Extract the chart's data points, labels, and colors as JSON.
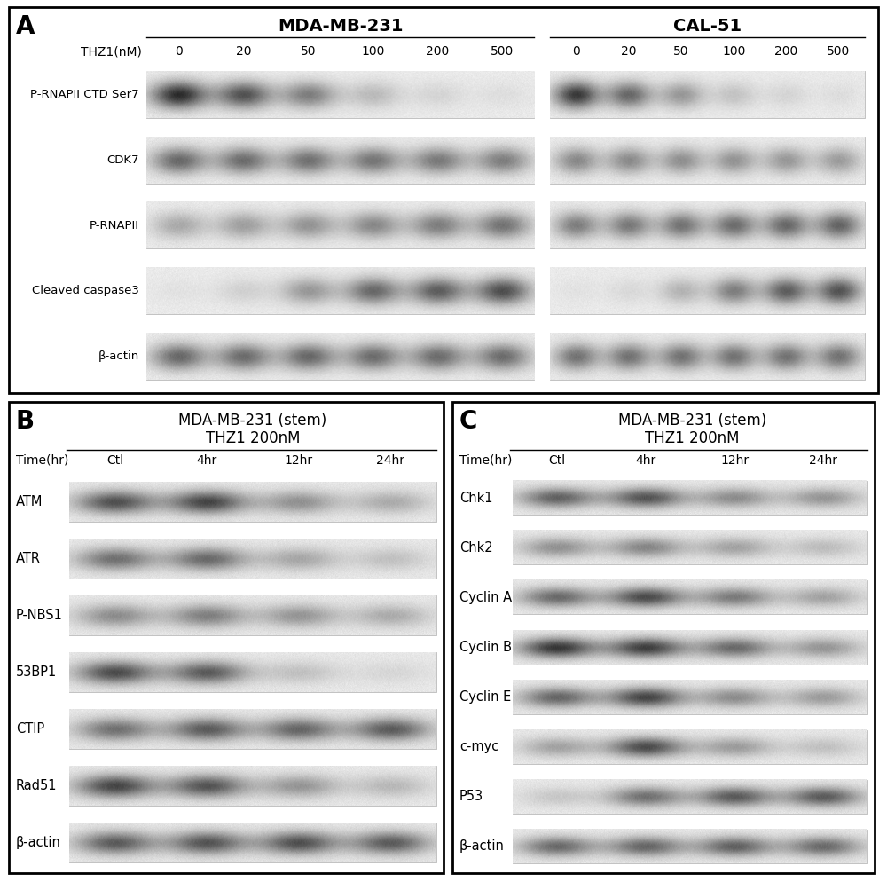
{
  "bg_color": "#ffffff",
  "panel_A": {
    "label": "A",
    "title_left": "MDA-MB-231",
    "title_right": "CAL-51",
    "row_label": "THZ1(nM)",
    "concentrations": [
      "0",
      "20",
      "50",
      "100",
      "200",
      "500"
    ],
    "proteins": [
      "P-RNAPII CTD Ser7",
      "CDK7",
      "P-RNAPII",
      "Cleaved caspase3",
      "β-actin"
    ],
    "band_data_left": {
      "P-RNAPII CTD Ser7": [
        0.88,
        0.7,
        0.5,
        0.22,
        0.1,
        0.06
      ],
      "CDK7": [
        0.6,
        0.58,
        0.56,
        0.54,
        0.52,
        0.5
      ],
      "P-RNAPII": [
        0.3,
        0.35,
        0.4,
        0.45,
        0.5,
        0.55
      ],
      "Cleaved caspase3": [
        0.04,
        0.12,
        0.38,
        0.6,
        0.65,
        0.72
      ],
      "β-actin": [
        0.6,
        0.58,
        0.6,
        0.58,
        0.58,
        0.58
      ]
    },
    "band_data_right": {
      "P-RNAPII CTD Ser7": [
        0.82,
        0.6,
        0.38,
        0.18,
        0.1,
        0.06
      ],
      "CDK7": [
        0.45,
        0.44,
        0.42,
        0.4,
        0.38,
        0.36
      ],
      "P-RNAPII": [
        0.5,
        0.52,
        0.55,
        0.58,
        0.6,
        0.62
      ],
      "Cleaved caspase3": [
        0.04,
        0.08,
        0.25,
        0.5,
        0.65,
        0.7
      ],
      "β-actin": [
        0.55,
        0.55,
        0.55,
        0.55,
        0.55,
        0.55
      ]
    }
  },
  "panel_B": {
    "label": "B",
    "title_line1": "MDA-MB-231 (stem)",
    "title_line2": "THZ1 200nM",
    "time_label": "Time(hr)",
    "time_points": [
      "Ctl",
      "4hr",
      "12hr",
      "24hr"
    ],
    "proteins": [
      "ATM",
      "ATR",
      "P-NBS1",
      "53BP1",
      "CTIP",
      "Rad51",
      "β-actin"
    ],
    "band_data": {
      "ATM": [
        0.7,
        0.75,
        0.4,
        0.28
      ],
      "ATR": [
        0.55,
        0.58,
        0.3,
        0.18
      ],
      "P-NBS1": [
        0.42,
        0.48,
        0.38,
        0.28
      ],
      "53BP1": [
        0.72,
        0.65,
        0.18,
        0.08
      ],
      "CTIP": [
        0.55,
        0.65,
        0.6,
        0.65
      ],
      "Rad51": [
        0.75,
        0.68,
        0.38,
        0.22
      ],
      "β-actin": [
        0.65,
        0.68,
        0.7,
        0.65
      ]
    }
  },
  "panel_C": {
    "label": "C",
    "title_line1": "MDA-MB-231 (stem)",
    "title_line2": "THZ1 200nM",
    "time_label": "Time(hr)",
    "time_points": [
      "Ctl",
      "4hr",
      "12hr",
      "24hr"
    ],
    "proteins": [
      "Chk1",
      "Chk2",
      "Cyclin A",
      "Cyclin B",
      "Cyclin E",
      "c-myc",
      "P53",
      "β-actin"
    ],
    "band_data": {
      "Chk1": [
        0.62,
        0.68,
        0.42,
        0.38
      ],
      "Chk2": [
        0.4,
        0.45,
        0.32,
        0.2
      ],
      "Cyclin A": [
        0.58,
        0.72,
        0.5,
        0.32
      ],
      "Cyclin B": [
        0.82,
        0.78,
        0.58,
        0.38
      ],
      "Cyclin E": [
        0.6,
        0.75,
        0.42,
        0.35
      ],
      "c-myc": [
        0.32,
        0.72,
        0.35,
        0.18
      ],
      "P53": [
        0.15,
        0.55,
        0.65,
        0.65
      ],
      "β-actin": [
        0.58,
        0.6,
        0.62,
        0.58
      ]
    }
  }
}
